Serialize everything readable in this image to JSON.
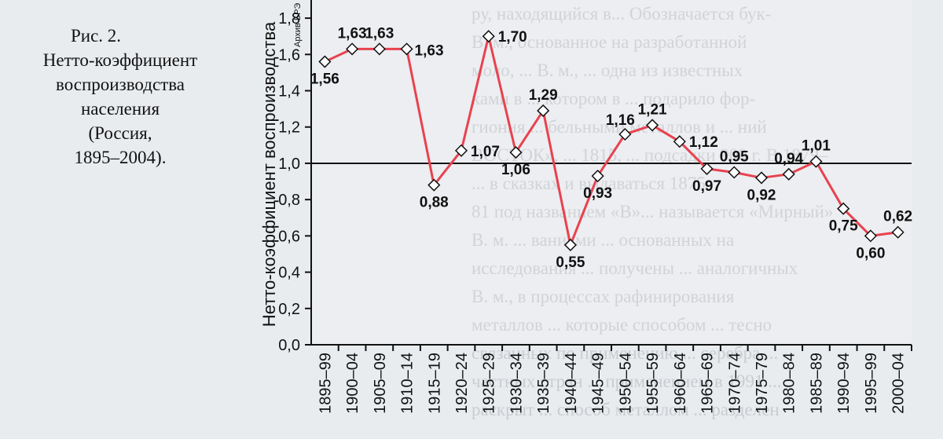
{
  "caption": {
    "fig": "Рис. 2.",
    "line1": "Нетто-коэффициент",
    "line2": "воспроизводства",
    "line3": "населения",
    "line4": "(Россия,",
    "line5": "1895–2004)."
  },
  "archive_label": "Архив БРЭ",
  "chart_data": {
    "type": "line",
    "ylabel": "Нетто-коэффициент воспроизводства",
    "ylim": [
      0,
      1.9
    ],
    "yticks": [
      "0,0",
      "0,2",
      "0,4",
      "0,6",
      "0,8",
      "1,0",
      "1,2",
      "1,4",
      "1,6",
      "1,8"
    ],
    "reference_line": 1.0,
    "categories": [
      "1895–99",
      "1900–04",
      "1905–09",
      "1910–14",
      "1915–19",
      "1920–24",
      "1925–29",
      "1930–34",
      "1935–39",
      "1940–44",
      "1945–49",
      "1950–54",
      "1955–59",
      "1960–64",
      "1965–69",
      "1970–74",
      "1975–79",
      "1980–84",
      "1985–89",
      "1990–94",
      "1995–99",
      "2000–04"
    ],
    "values": [
      1.56,
      1.63,
      1.63,
      1.63,
      0.88,
      1.07,
      1.7,
      1.06,
      1.29,
      0.55,
      0.93,
      1.16,
      1.21,
      1.12,
      0.97,
      0.95,
      0.92,
      0.94,
      1.01,
      0.75,
      0.6,
      0.62
    ],
    "labels": [
      "1,56",
      "1,63",
      "1,63",
      "1,63",
      "0,88",
      "1,07",
      "1,70",
      "1,06",
      "1,29",
      "0,55",
      "0,93",
      "1,16",
      "1,21",
      "1,12",
      "0,97",
      "0,95",
      "0,92",
      "0,94",
      "1,01",
      "0,75",
      "0,60",
      "0,62"
    ],
    "line_color": "#e8424f",
    "marker_color": "#ffffff"
  },
  "background_text": [
    "ру, находящийся в... Обозначается бук-",
    "В. м., основанное на разработанной",
    "моло, ... В. м., ... одна из известных",
    "ками в ... котором в ... подарило фор-",
    "гиония ... бельными металлов и ... ний",
    "ВОСТОК», ... 1815, ... подсадки 900 г. В 1879–",
    "... в сказках и выдаваться 1875",
    "81 под названием «В»... называется «Мирный»",
    "В. м. ... ваниями ... основанных на",
    "исследования ... получены ... аналогичных",
    "В. м., в процессах рафинирования",
    "металлов ... которые способом ... тесно",
    "связанных по применению ... серебра ...",
    "частных стран ... применением в 1991 ...",
    "раскрыт ... способ металлом ... разделен"
  ]
}
